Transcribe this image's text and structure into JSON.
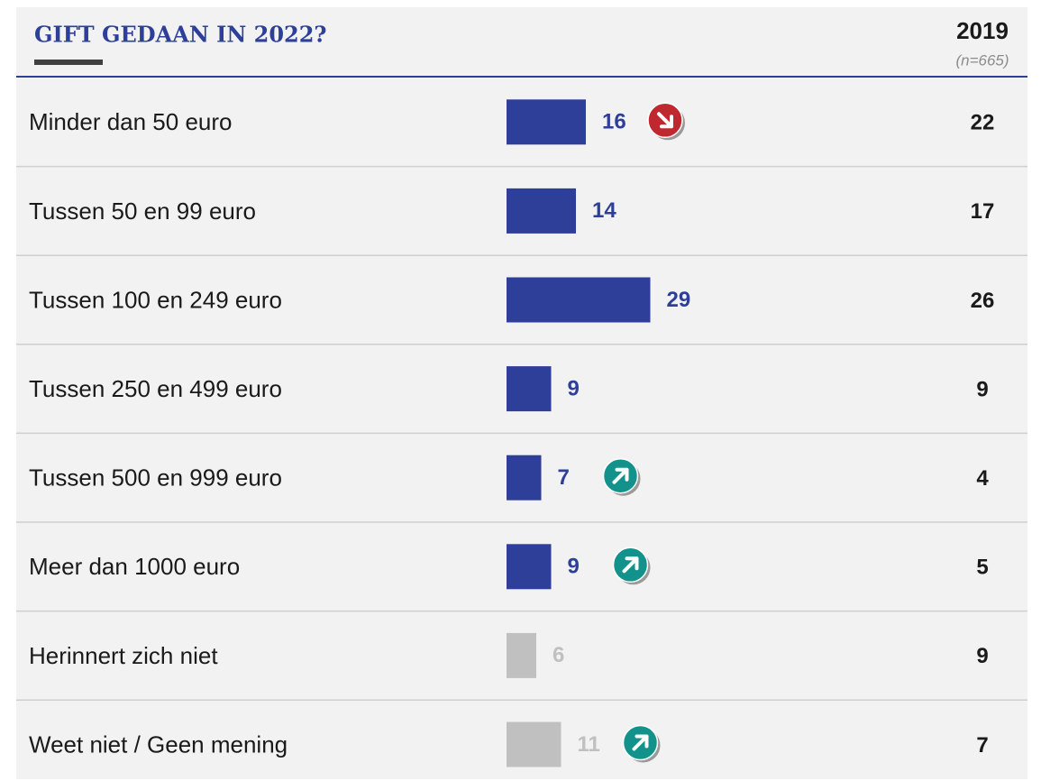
{
  "chart_data": {
    "type": "bar",
    "title": "GIFT GEDAAN IN 2022?",
    "categories": [
      "Minder dan 50 euro",
      "Tussen 50 en 99 euro",
      "Tussen 100 en 249 euro",
      "Tussen 250 en 499 euro",
      "Tussen 500 en 999 euro",
      "Meer dan 1000 euro",
      "Herinnert zich niet",
      "Weet niet / Geen mening"
    ],
    "values": [
      16,
      14,
      29,
      9,
      7,
      9,
      6,
      11
    ],
    "colors": [
      "#2e3f99",
      "#2e3f99",
      "#2e3f99",
      "#2e3f99",
      "#2e3f99",
      "#2e3f99",
      "#c0c0c0",
      "#c0c0c0"
    ],
    "trends": [
      "down",
      null,
      null,
      null,
      "up",
      "up",
      null,
      "up"
    ],
    "comparison": {
      "title": "2019",
      "subtitle": "(n=665)",
      "values": [
        22,
        17,
        26,
        9,
        4,
        5,
        9,
        7
      ]
    }
  }
}
